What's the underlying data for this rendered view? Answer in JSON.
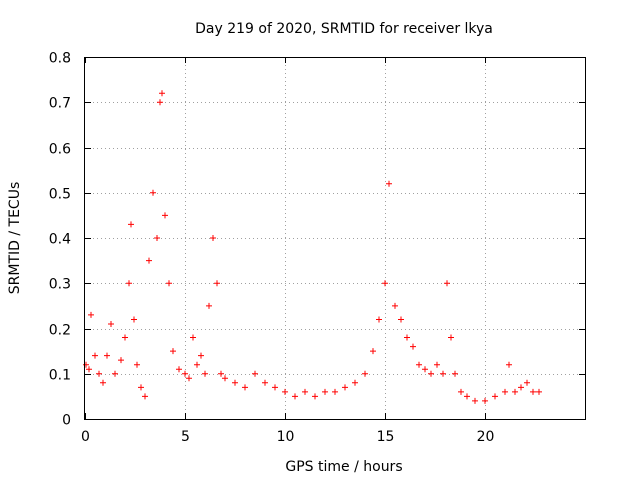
{
  "chart_data": {
    "type": "scatter",
    "title": "Day 219 of 2020, SRMTID for receiver lkya",
    "xlabel": "GPS time / hours",
    "ylabel": "SRMTID / TECUs",
    "xlim": [
      0,
      25
    ],
    "ylim": [
      0,
      0.8
    ],
    "xticks": [
      0,
      5,
      10,
      15,
      20
    ],
    "yticks": [
      0,
      0.1,
      0.2,
      0.3,
      0.4,
      0.5,
      0.6,
      0.7,
      0.8
    ],
    "xtick_labels": [
      "0",
      "5",
      "10",
      "15",
      "20"
    ],
    "ytick_labels": [
      "0",
      "0.1",
      "0.2",
      "0.3",
      "0.4",
      "0.5",
      "0.6",
      "0.7",
      "0.8"
    ],
    "grid": true,
    "marker": "plus",
    "series": [
      {
        "name": "SRMTID",
        "color": "#ff0000",
        "envelope": [
          [
            0.05,
            0.12
          ],
          [
            0.2,
            0.11
          ],
          [
            0.3,
            0.23
          ],
          [
            0.5,
            0.14
          ],
          [
            0.7,
            0.1
          ],
          [
            0.9,
            0.08
          ],
          [
            1.1,
            0.14
          ],
          [
            1.3,
            0.21
          ],
          [
            1.5,
            0.1
          ],
          [
            1.8,
            0.13
          ],
          [
            2.0,
            0.18
          ],
          [
            2.2,
            0.3
          ],
          [
            2.3,
            0.43
          ],
          [
            2.45,
            0.22
          ],
          [
            2.6,
            0.12
          ],
          [
            2.8,
            0.07
          ],
          [
            3.0,
            0.05
          ],
          [
            3.2,
            0.35
          ],
          [
            3.4,
            0.5
          ],
          [
            3.6,
            0.4
          ],
          [
            3.75,
            0.7
          ],
          [
            3.85,
            0.72
          ],
          [
            4.0,
            0.45
          ],
          [
            4.2,
            0.3
          ],
          [
            4.4,
            0.15
          ],
          [
            4.7,
            0.11
          ],
          [
            5.0,
            0.1
          ],
          [
            5.2,
            0.09
          ],
          [
            5.4,
            0.18
          ],
          [
            5.6,
            0.12
          ],
          [
            5.8,
            0.14
          ],
          [
            6.0,
            0.1
          ],
          [
            6.2,
            0.25
          ],
          [
            6.4,
            0.4
          ],
          [
            6.6,
            0.3
          ],
          [
            6.8,
            0.1
          ],
          [
            7.0,
            0.09
          ],
          [
            7.5,
            0.08
          ],
          [
            8.0,
            0.07
          ],
          [
            8.5,
            0.1
          ],
          [
            9.0,
            0.08
          ],
          [
            9.5,
            0.07
          ],
          [
            10.0,
            0.06
          ],
          [
            10.5,
            0.05
          ],
          [
            11.0,
            0.06
          ],
          [
            11.5,
            0.05
          ],
          [
            12.0,
            0.06
          ],
          [
            12.5,
            0.06
          ],
          [
            13.0,
            0.07
          ],
          [
            13.5,
            0.08
          ],
          [
            14.0,
            0.1
          ],
          [
            14.4,
            0.15
          ],
          [
            14.7,
            0.22
          ],
          [
            15.0,
            0.3
          ],
          [
            15.2,
            0.52
          ],
          [
            15.5,
            0.25
          ],
          [
            15.8,
            0.22
          ],
          [
            16.1,
            0.18
          ],
          [
            16.4,
            0.16
          ],
          [
            16.7,
            0.12
          ],
          [
            17.0,
            0.11
          ],
          [
            17.3,
            0.1
          ],
          [
            17.6,
            0.12
          ],
          [
            17.9,
            0.1
          ],
          [
            18.1,
            0.3
          ],
          [
            18.3,
            0.18
          ],
          [
            18.5,
            0.1
          ],
          [
            18.8,
            0.06
          ],
          [
            19.1,
            0.05
          ],
          [
            19.5,
            0.04
          ],
          [
            20.0,
            0.04
          ],
          [
            20.5,
            0.05
          ],
          [
            21.0,
            0.06
          ],
          [
            21.2,
            0.12
          ],
          [
            21.5,
            0.06
          ],
          [
            21.8,
            0.07
          ],
          [
            22.1,
            0.08
          ],
          [
            22.4,
            0.06
          ],
          [
            22.7,
            0.06
          ]
        ]
      }
    ]
  }
}
